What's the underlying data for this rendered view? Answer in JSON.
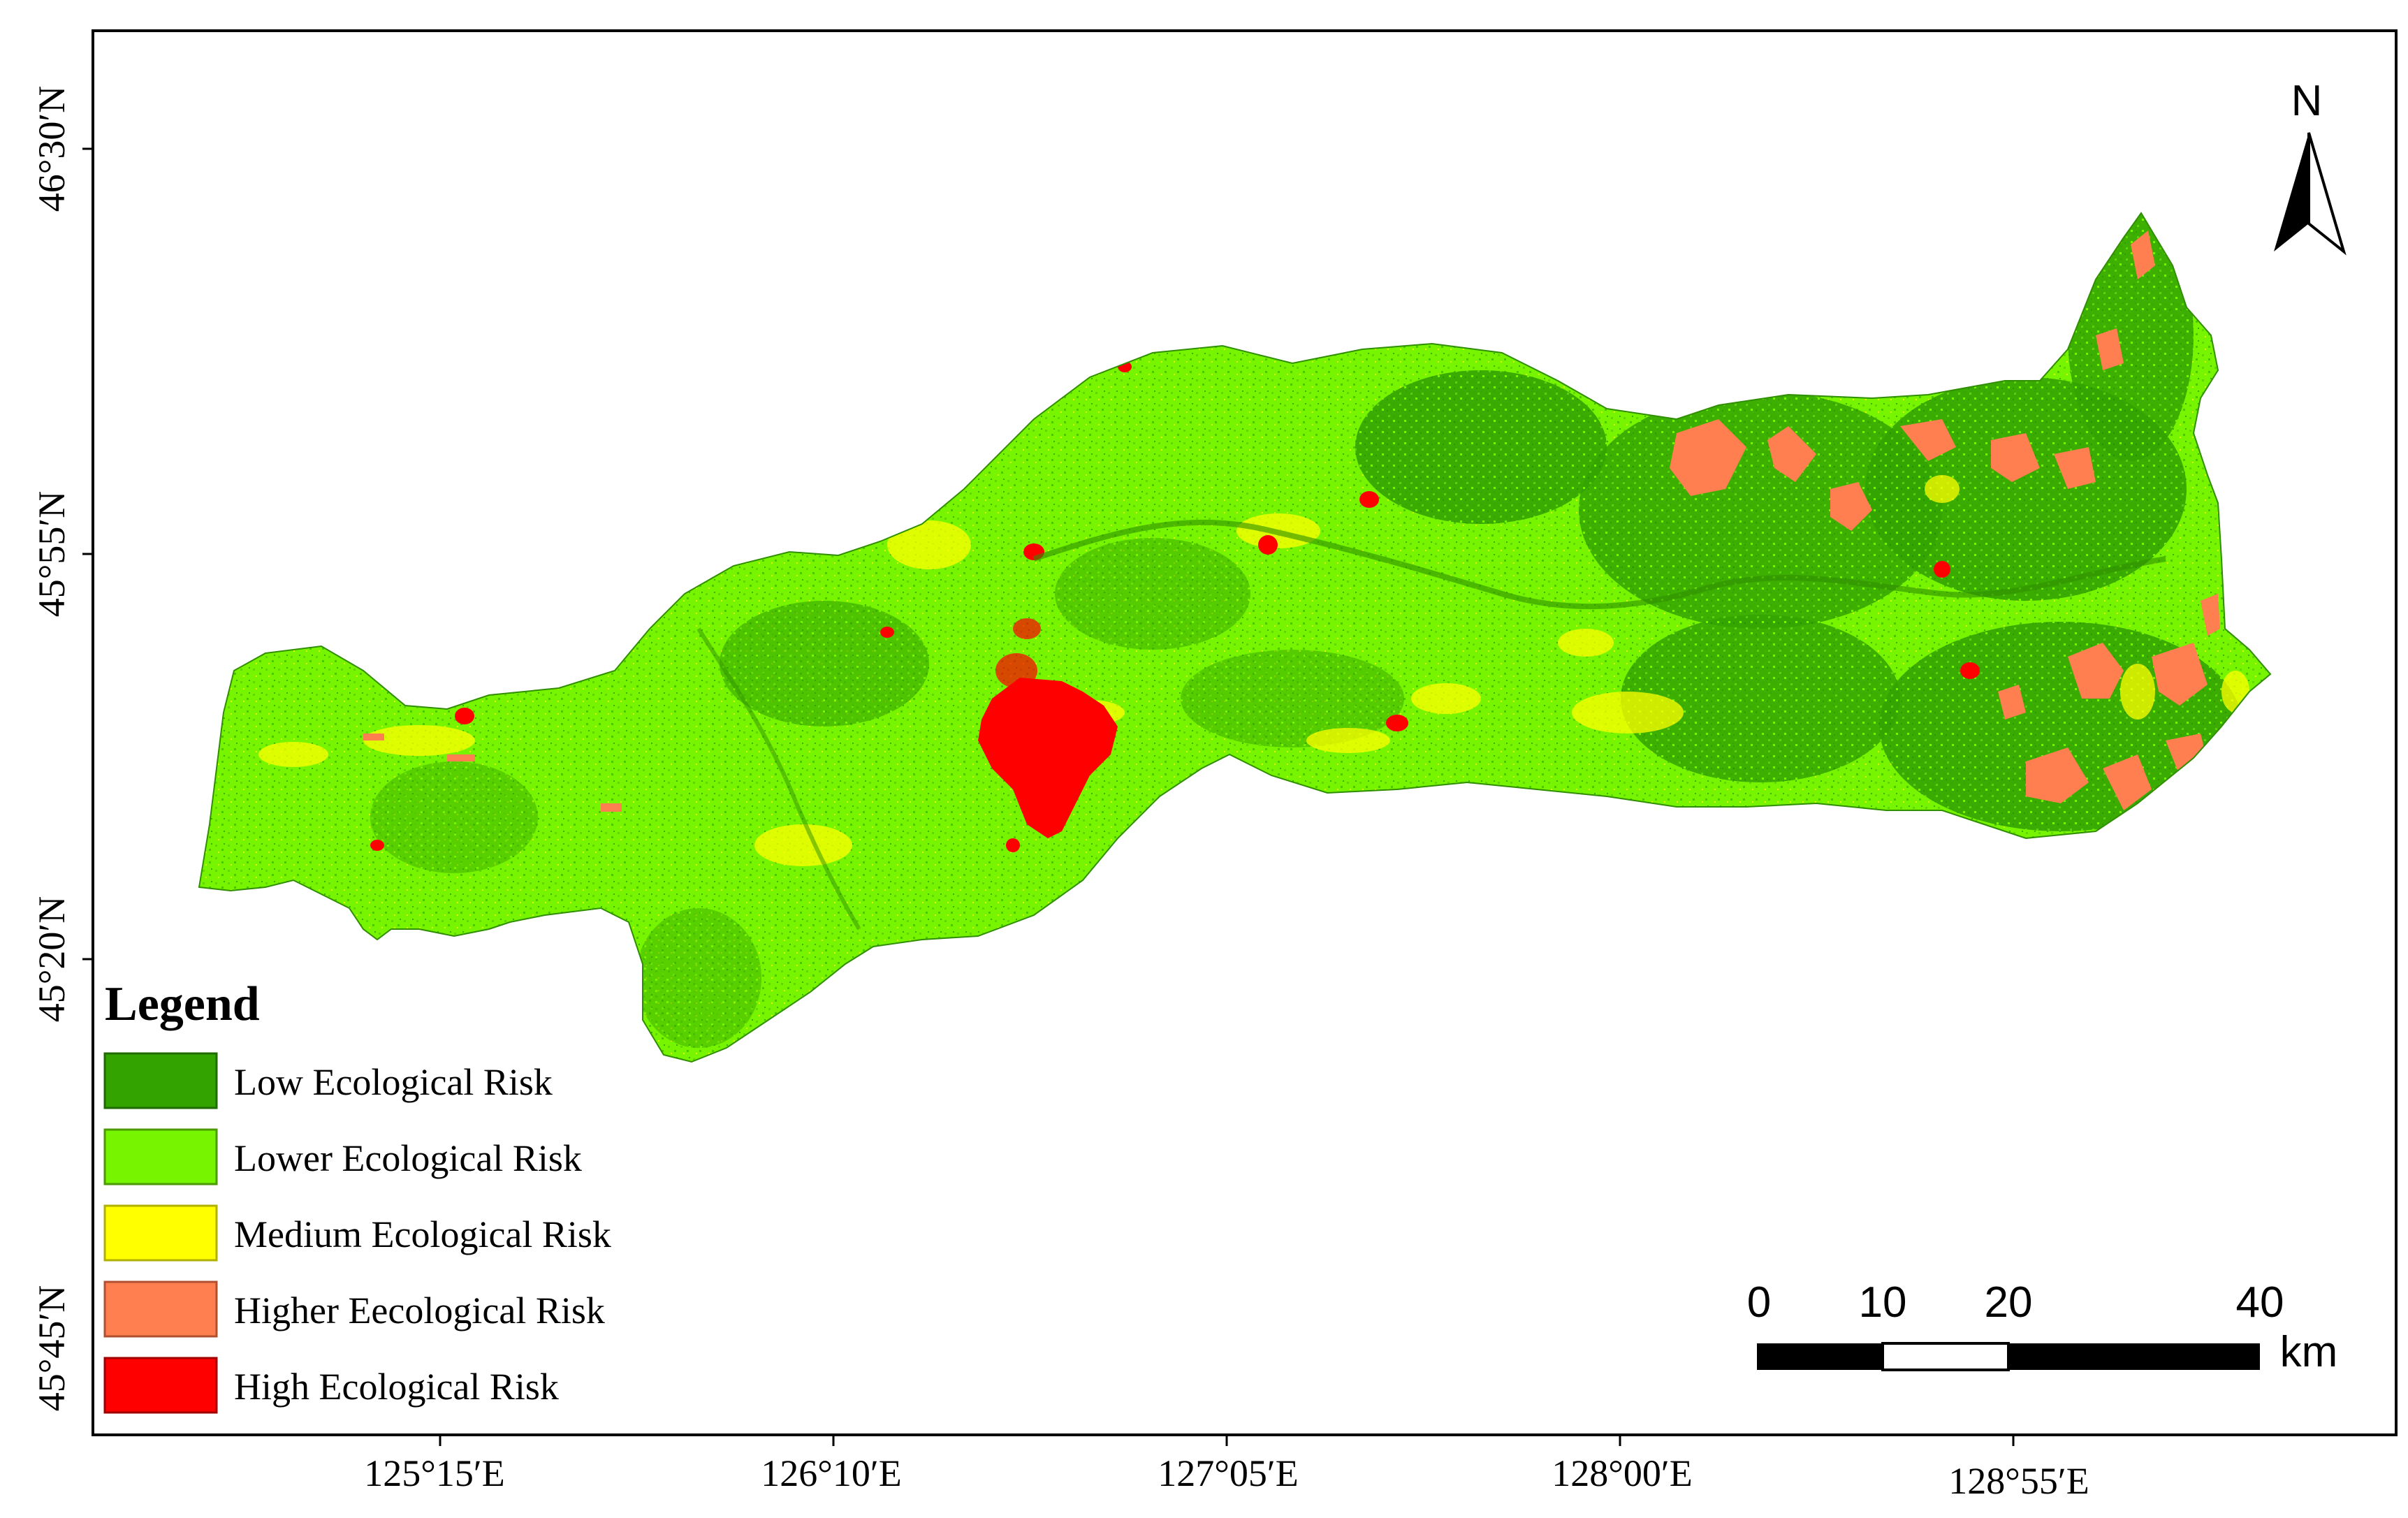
{
  "axes": {
    "x_ticks": [
      "125°15′E",
      "126°10′E",
      "127°05′E",
      "128°00′E",
      "128°55′E"
    ],
    "y_ticks": [
      "46°30′N",
      "45°55′N",
      "45°20′N",
      "45°45′N"
    ]
  },
  "legend": {
    "title": "Legend",
    "items": [
      {
        "label": "Low Ecological Risk",
        "color": "#33a300"
      },
      {
        "label": "Lower Ecological Risk",
        "color": "#77f500"
      },
      {
        "label": "Medium Ecological Risk",
        "color": "#ffff00"
      },
      {
        "label": "Higher Eecological Risk",
        "color": "#ff7f50"
      },
      {
        "label": "High Ecological Risk",
        "color": "#ff0000"
      }
    ]
  },
  "scale_bar": {
    "labels": [
      "0",
      "10",
      "20",
      "40"
    ],
    "unit": "km"
  },
  "north_arrow": {
    "label": "N"
  },
  "colors": {
    "low": "#33a300",
    "lower": "#77f500",
    "medium": "#ffff00",
    "higher": "#ff7f50",
    "high": "#ff0000",
    "frame": "#000000"
  }
}
